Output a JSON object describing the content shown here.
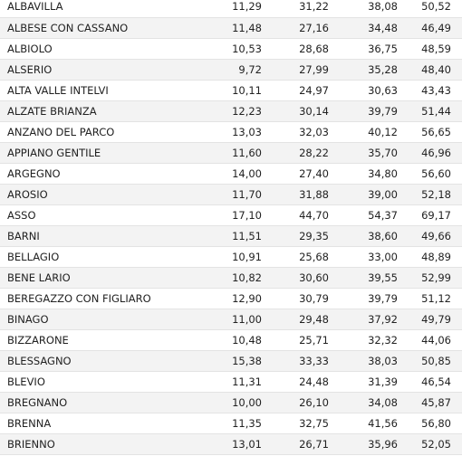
{
  "table": {
    "rows": [
      {
        "name": "ALBAVILLA",
        "v1": "11,29",
        "v2": "31,22",
        "v3": "38,08",
        "v4": "50,52"
      },
      {
        "name": "ALBESE CON CASSANO",
        "v1": "11,48",
        "v2": "27,16",
        "v3": "34,48",
        "v4": "46,49"
      },
      {
        "name": "ALBIOLO",
        "v1": "10,53",
        "v2": "28,68",
        "v3": "36,75",
        "v4": "48,59"
      },
      {
        "name": "ALSERIO",
        "v1": "9,72",
        "v2": "27,99",
        "v3": "35,28",
        "v4": "48,40"
      },
      {
        "name": "ALTA VALLE INTELVI",
        "v1": "10,11",
        "v2": "24,97",
        "v3": "30,63",
        "v4": "43,43"
      },
      {
        "name": "ALZATE BRIANZA",
        "v1": "12,23",
        "v2": "30,14",
        "v3": "39,79",
        "v4": "51,44"
      },
      {
        "name": "ANZANO DEL PARCO",
        "v1": "13,03",
        "v2": "32,03",
        "v3": "40,12",
        "v4": "56,65"
      },
      {
        "name": "APPIANO GENTILE",
        "v1": "11,60",
        "v2": "28,22",
        "v3": "35,70",
        "v4": "46,96"
      },
      {
        "name": "ARGEGNO",
        "v1": "14,00",
        "v2": "27,40",
        "v3": "34,80",
        "v4": "56,60"
      },
      {
        "name": "AROSIO",
        "v1": "11,70",
        "v2": "31,88",
        "v3": "39,00",
        "v4": "52,18"
      },
      {
        "name": "ASSO",
        "v1": "17,10",
        "v2": "44,70",
        "v3": "54,37",
        "v4": "69,17"
      },
      {
        "name": "BARNI",
        "v1": "11,51",
        "v2": "29,35",
        "v3": "38,60",
        "v4": "49,66"
      },
      {
        "name": "BELLAGIO",
        "v1": "10,91",
        "v2": "25,68",
        "v3": "33,00",
        "v4": "48,89"
      },
      {
        "name": "BENE LARIO",
        "v1": "10,82",
        "v2": "30,60",
        "v3": "39,55",
        "v4": "52,99"
      },
      {
        "name": "BEREGAZZO CON FIGLIARO",
        "v1": "12,90",
        "v2": "30,79",
        "v3": "39,79",
        "v4": "51,12"
      },
      {
        "name": "BINAGO",
        "v1": "11,00",
        "v2": "29,48",
        "v3": "37,92",
        "v4": "49,79"
      },
      {
        "name": "BIZZARONE",
        "v1": "10,48",
        "v2": "25,71",
        "v3": "32,32",
        "v4": "44,06"
      },
      {
        "name": "BLESSAGNO",
        "v1": "15,38",
        "v2": "33,33",
        "v3": "38,03",
        "v4": "50,85"
      },
      {
        "name": "BLEVIO",
        "v1": "11,31",
        "v2": "24,48",
        "v3": "31,39",
        "v4": "46,54"
      },
      {
        "name": "BREGNANO",
        "v1": "10,00",
        "v2": "26,10",
        "v3": "34,08",
        "v4": "45,87"
      },
      {
        "name": "BRENNA",
        "v1": "11,35",
        "v2": "32,75",
        "v3": "41,56",
        "v4": "56,80"
      },
      {
        "name": "BRIENNO",
        "v1": "13,01",
        "v2": "26,71",
        "v3": "35,96",
        "v4": "52,05"
      }
    ]
  }
}
